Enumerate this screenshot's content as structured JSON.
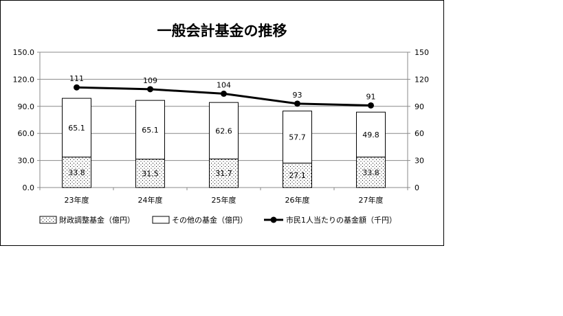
{
  "chart_data": {
    "type": "bar",
    "title": "一般会計基金の推移",
    "categories": [
      "23年度",
      "24年度",
      "25年度",
      "26年度",
      "27年度"
    ],
    "series": [
      {
        "name": "財政調整基金（億円）",
        "kind": "stacked-bar",
        "axis": "left",
        "pattern": "dotted",
        "values": [
          33.8,
          31.5,
          31.7,
          27.1,
          33.8
        ]
      },
      {
        "name": "その他の基金（億円）",
        "kind": "stacked-bar",
        "axis": "left",
        "pattern": "white",
        "values": [
          65.1,
          65.1,
          62.6,
          57.7,
          49.8
        ]
      },
      {
        "name": "市民1人当たりの基金額（千円）",
        "kind": "line",
        "axis": "right",
        "color": "#000000",
        "values": [
          111,
          109,
          104,
          93,
          91
        ]
      }
    ],
    "y_left": {
      "ylim": [
        0,
        150
      ],
      "ticks": [
        "0.0",
        "30.0",
        "60.0",
        "90.0",
        "120.0",
        "150.0"
      ]
    },
    "y_right": {
      "ylim": [
        0,
        150
      ],
      "ticks": [
        "0",
        "30",
        "60",
        "90",
        "120",
        "150"
      ]
    },
    "grid": true,
    "legend_position": "bottom"
  }
}
